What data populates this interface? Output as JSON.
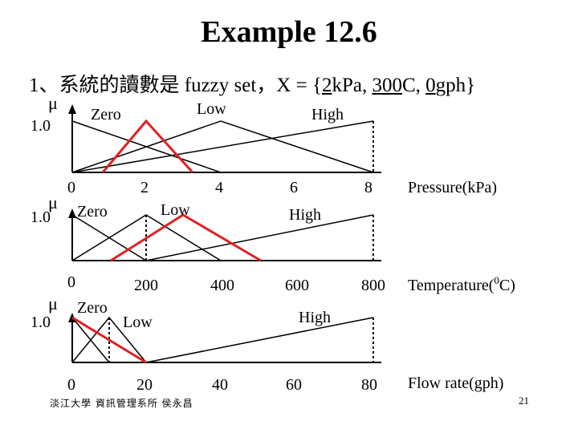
{
  "slide": {
    "title": "Example 12.6",
    "subtitle": {
      "prefix": "1、系統的讀數是 fuzzy set，X = {",
      "v1": "2",
      "v1_rest": "kPa, ",
      "v2": "300",
      "v2_rest": "C, ",
      "v3": "0",
      "v3_rest": "gph}"
    },
    "footer": "淡江大學 資訊管理系所 侯永昌",
    "page_number": "21"
  },
  "colors": {
    "membership": "#000000",
    "highlight": "#e02020"
  },
  "panels": [
    {
      "axis_label": "Pressure(kPa)",
      "mu_label": "μ",
      "one_label": "1.0",
      "ticks": [
        "0",
        "2",
        "4",
        "6",
        "8"
      ],
      "sets": {
        "zero": "Zero",
        "low": "Low",
        "high": "High"
      },
      "reading": 2
    },
    {
      "axis_label": "Temperature(",
      "axis_label_sup": "0",
      "axis_label_end": "C)",
      "mu_label": "μ",
      "one_label": "1.0",
      "ticks": [
        "0",
        "200",
        "400",
        "600",
        "800"
      ],
      "sets": {
        "zero": "Zero",
        "low": "Low",
        "high": "High"
      },
      "reading": 300
    },
    {
      "axis_label": "Flow rate(gph)",
      "mu_label": "μ",
      "one_label": "1.0",
      "ticks": [
        "0",
        "20",
        "40",
        "60",
        "80"
      ],
      "sets": {
        "zero": "Zero",
        "low": "Low",
        "high": "High"
      },
      "reading": 0
    }
  ]
}
